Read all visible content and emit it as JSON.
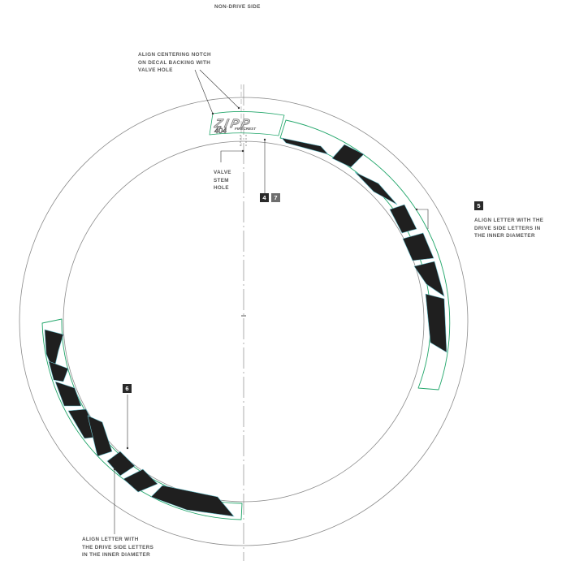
{
  "header": {
    "title": "NON-DRIVE SIDE"
  },
  "notes": {
    "centering": [
      "ALIGN CENTERING NOTCH",
      "ON DECAL BACKING WITH",
      "VALVE HOLE"
    ],
    "valve": [
      "VALVE",
      "STEM",
      "HOLE"
    ],
    "right_align": [
      "ALIGN LETTER WITH THE",
      "DRIVE SIDE LETTERS IN",
      "THE INNER DIAMETER"
    ],
    "left_align": [
      "ALIGN LETTER WITH",
      "THE DRIVE SIDE LETTERS",
      "IN THE INNER DIAMETER"
    ]
  },
  "badges": {
    "four": "4",
    "seven": "7",
    "five": "5",
    "six": "6"
  },
  "logo": {
    "brand": "ZIPP",
    "model": "404",
    "series": "FIRECREST"
  },
  "colors": {
    "decal_outline": "#21a66a",
    "letter_fill": "#1f1f1f",
    "letter_edge": "#6fc7d3",
    "rim_line": "#8a8a8a",
    "text": "#555555"
  }
}
